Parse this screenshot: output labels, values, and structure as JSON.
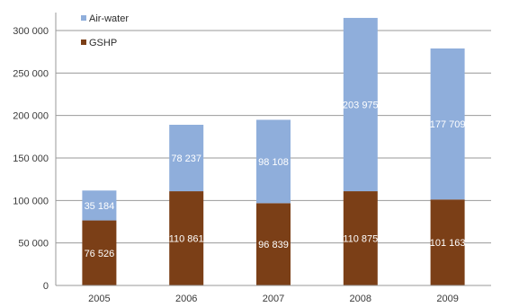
{
  "chart_data": {
    "type": "bar",
    "stacked": true,
    "categories": [
      "2005",
      "2006",
      "2007",
      "2008",
      "2009"
    ],
    "series": [
      {
        "name": "GSHP",
        "values": [
          76526,
          110861,
          96839,
          110875,
          101163
        ],
        "labels": [
          "76 526",
          "110 861",
          "96 839",
          "110 875",
          "101 163"
        ]
      },
      {
        "name": "Air-water",
        "values": [
          35184,
          78237,
          98108,
          203975,
          177709
        ],
        "labels": [
          "35 184",
          "78 237",
          "98 108",
          "203 975",
          "177 709"
        ]
      }
    ],
    "ylim": [
      0,
      300000
    ],
    "yticks": [
      0,
      50000,
      100000,
      150000,
      200000,
      250000,
      300000
    ],
    "ytick_labels": [
      "0",
      "50 000",
      "100 000",
      "150 000",
      "200 000",
      "250 000",
      "300 000"
    ],
    "grid": true,
    "legend": {
      "position": "top-left"
    },
    "colors": {
      "Air-water": "#8faedb",
      "GSHP": "#7b3f17",
      "grid": "#9a9a9a",
      "axis": "#9a9a9a"
    },
    "xlabel": "",
    "ylabel": "",
    "title": ""
  }
}
